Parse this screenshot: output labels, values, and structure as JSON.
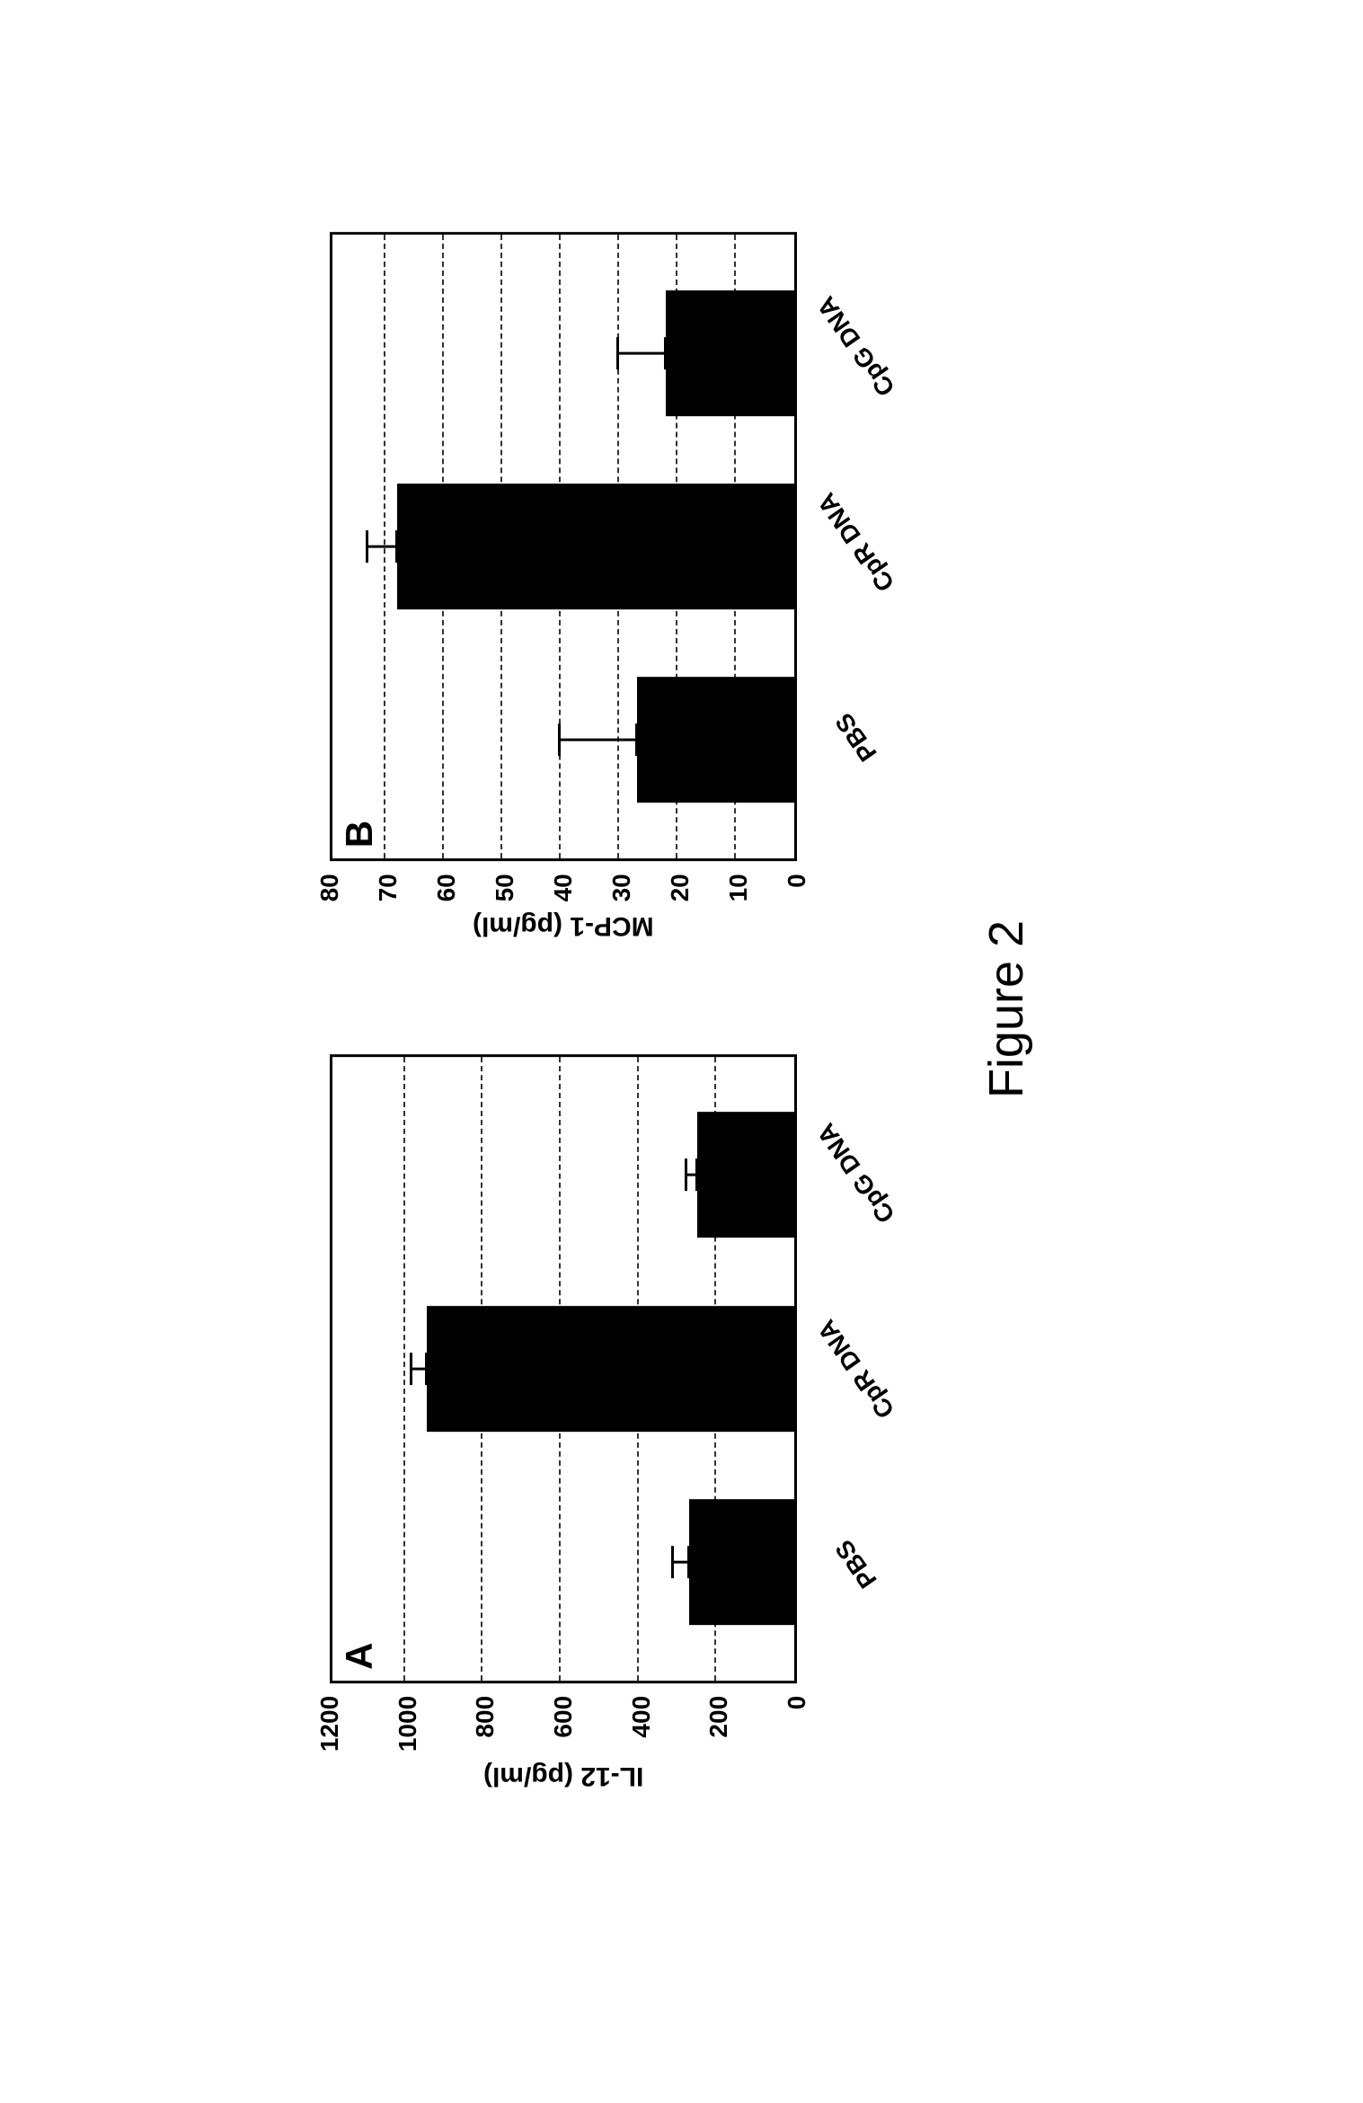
{
  "figure_title": "Figure 2",
  "chart_a": {
    "type": "bar",
    "panel_label": "A",
    "ylabel": "IL-12 (pg/ml)",
    "ylim": [
      0,
      1200
    ],
    "ytick_step": 200,
    "yticks": [
      0,
      200,
      400,
      600,
      800,
      1000,
      1200
    ],
    "categories": [
      "PBS",
      "CpR DNA",
      "CpG DNA"
    ],
    "values": [
      270,
      945,
      250
    ],
    "errors": [
      40,
      35,
      25
    ],
    "bar_color": "#000000",
    "background_color": "#ffffff",
    "grid_color": "#000000",
    "grid_style": "dashed",
    "bar_width": 0.55,
    "label_fontsize": 30,
    "tick_fontsize": 28,
    "panel_fontsize": 42
  },
  "chart_b": {
    "type": "bar",
    "panel_label": "B",
    "ylabel": "MCP-1 (pg/ml)",
    "ylim": [
      0,
      80
    ],
    "ytick_step": 10,
    "yticks": [
      0,
      10,
      20,
      30,
      40,
      50,
      60,
      70,
      80
    ],
    "categories": [
      "PBS",
      "CpR DNA",
      "CpG DNA"
    ],
    "values": [
      27,
      68,
      22
    ],
    "errors": [
      13,
      5,
      8
    ],
    "bar_color": "#000000",
    "background_color": "#ffffff",
    "grid_color": "#000000",
    "grid_style": "dashed",
    "bar_width": 0.55,
    "label_fontsize": 30,
    "tick_fontsize": 28,
    "panel_fontsize": 42
  }
}
